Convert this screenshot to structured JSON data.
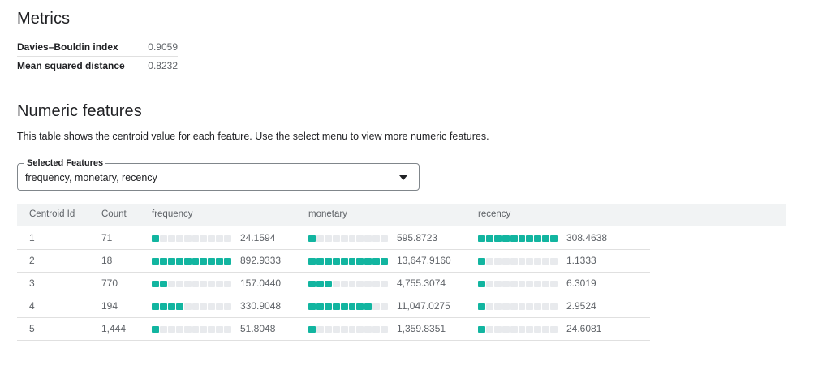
{
  "metrics": {
    "title": "Metrics",
    "rows": [
      {
        "label": "Davies–Bouldin index",
        "value": "0.9059"
      },
      {
        "label": "Mean squared distance",
        "value": "0.8232"
      }
    ]
  },
  "numeric": {
    "title": "Numeric features",
    "description": "This table shows the centroid value for each feature. Use the select menu to view more numeric features.",
    "select": {
      "label": "Selected Features",
      "value": "frequency, monetary, recency"
    }
  },
  "table": {
    "headers": [
      "Centroid Id",
      "Count",
      "frequency",
      "monetary",
      "recency"
    ],
    "rows": [
      {
        "id": "1",
        "count": "71",
        "frequency": {
          "text": "24.1594",
          "level": 0.026
        },
        "monetary": {
          "text": "595.8723",
          "level": 0.044
        },
        "recency": {
          "text": "308.4638",
          "level": 1.0
        }
      },
      {
        "id": "2",
        "count": "18",
        "frequency": {
          "text": "892.9333",
          "level": 1.0
        },
        "monetary": {
          "text": "13,647.9160",
          "level": 1.0
        },
        "recency": {
          "text": "1.1333",
          "level": 0.004
        }
      },
      {
        "id": "3",
        "count": "770",
        "frequency": {
          "text": "157.0440",
          "level": 0.176
        },
        "monetary": {
          "text": "4,755.3074",
          "level": 0.348
        },
        "recency": {
          "text": "6.3019",
          "level": 0.02
        }
      },
      {
        "id": "4",
        "count": "194",
        "frequency": {
          "text": "330.9048",
          "level": 0.371
        },
        "monetary": {
          "text": "11,047.0275",
          "level": 0.809
        },
        "recency": {
          "text": "2.9524",
          "level": 0.01
        }
      },
      {
        "id": "5",
        "count": "1,444",
        "frequency": {
          "text": "51.8048",
          "level": 0.058
        },
        "monetary": {
          "text": "1,359.8351",
          "level": 0.1
        },
        "recency": {
          "text": "24.6081",
          "level": 0.08
        }
      }
    ]
  },
  "colors": {
    "bar_fill": "#12b5a0",
    "bar_empty": "#e8eaed"
  }
}
